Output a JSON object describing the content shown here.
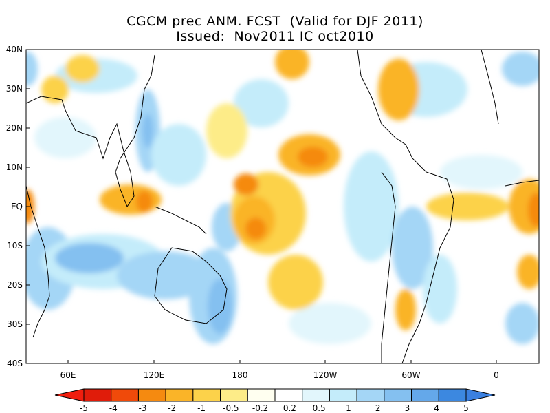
{
  "title_line1": "CGCM prec ANM. FCST  (Valid for DJF 2011)",
  "title_line2": "Issued:  Nov2011 IC oct2010",
  "lat_labels": [
    "40N",
    "30N",
    "20N",
    "10N",
    "EQ",
    "10S",
    "20S",
    "30S",
    "40S"
  ],
  "lon_labels": [
    "60E",
    "120E",
    "180",
    "120W",
    "60W",
    "0"
  ],
  "colorbar": {
    "labels": [
      "-5",
      "-4",
      "-3",
      "-2",
      "-1",
      "-0.5",
      "-0.2",
      "0.2",
      "0.5",
      "1",
      "2",
      "3",
      "4",
      "5"
    ],
    "colors": [
      "#e01c0a",
      "#f04a0a",
      "#f58a10",
      "#fab428",
      "#fcd24a",
      "#fdec88",
      "#fffff0",
      "#ffffff",
      "#e2f6fc",
      "#c4ecfa",
      "#a4d6f6",
      "#84c0f0",
      "#64a8ea",
      "#3c88e0"
    ]
  },
  "legend_edges": {
    "left": "#f01e0e",
    "right": "#3a80e0"
  },
  "anomaly_colors": {
    "dry_strong": "#e8320c",
    "dry_mid": "#f58a10",
    "dry_light": "#fab428",
    "dry_pale": "#fcd24a",
    "dry_faint": "#fdec88",
    "wet_faint": "#e2f6fc",
    "wet_pale": "#c4ecfa",
    "wet_light": "#a4d6f6",
    "wet_mid": "#84c0f0",
    "wet_strong": "#64a8ea"
  }
}
